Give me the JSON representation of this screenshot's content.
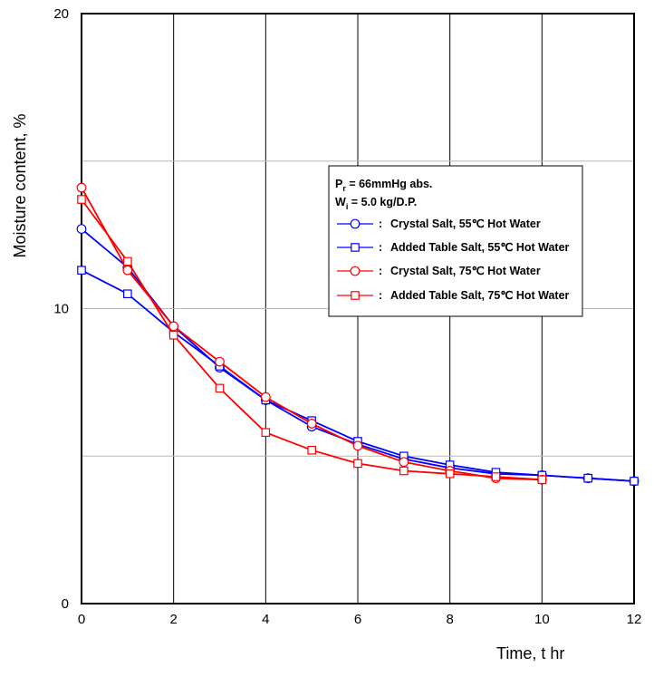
{
  "chart_data": {
    "type": "line",
    "xlabel": "Time, t  hr",
    "ylabel": "Moisture content,  %",
    "xlim": [
      0,
      12
    ],
    "ylim": [
      0,
      20
    ],
    "x_ticks": [
      "0",
      "2",
      "4",
      "6",
      "8",
      "10",
      "12"
    ],
    "y_ticks": [
      "0",
      "10",
      "20"
    ],
    "grid": "vertical lines every 2 hr; horizontal lines at 5 % intervals",
    "legend_placement": "upper-right, inside plot",
    "conditions": {
      "pressure_prefix": "P",
      "pressure_subscript": "r",
      "pressure_text": " = 66mmHg abs.",
      "weight_prefix": "W",
      "weight_subscript": "i",
      "weight_text": " = 5.0 kg/D.P."
    },
    "series": [
      {
        "name": "Crystal Salt, 55℃ Hot Water",
        "color": "#0000ff",
        "marker": "circle",
        "x": [
          0,
          1,
          2,
          3,
          4,
          5,
          6,
          7,
          8,
          9,
          10,
          11,
          12
        ],
        "y": [
          12.7,
          11.4,
          9.4,
          8.0,
          6.9,
          6.0,
          5.4,
          4.9,
          4.6,
          4.4,
          4.35,
          4.25,
          4.15
        ]
      },
      {
        "name": "Added Table Salt, 55℃ Hot Water",
        "color": "#0000ff",
        "marker": "square",
        "x": [
          0,
          1,
          2,
          3,
          4,
          5,
          6,
          7,
          8,
          9,
          10,
          11,
          12
        ],
        "y": [
          11.3,
          10.5,
          9.2,
          8.05,
          6.9,
          6.2,
          5.5,
          5.0,
          4.7,
          4.45,
          4.35,
          4.25,
          4.15
        ]
      },
      {
        "name": "Crystal Salt, 75℃ Hot Water",
        "color": "#ff0000",
        "marker": "circle",
        "x": [
          0,
          1,
          2,
          3,
          4,
          5,
          6,
          7,
          8,
          9,
          10
        ],
        "y": [
          14.1,
          11.3,
          9.4,
          8.2,
          7.0,
          6.1,
          5.35,
          4.8,
          4.5,
          4.25,
          4.2
        ]
      },
      {
        "name": "Added Table Salt, 75℃ Hot Water",
        "color": "#ff0000",
        "marker": "square",
        "x": [
          0,
          1,
          2,
          3,
          4,
          5,
          6,
          7,
          8,
          9,
          10
        ],
        "y": [
          13.7,
          11.6,
          9.1,
          7.3,
          5.8,
          5.2,
          4.75,
          4.5,
          4.4,
          4.3,
          4.2
        ]
      }
    ]
  }
}
